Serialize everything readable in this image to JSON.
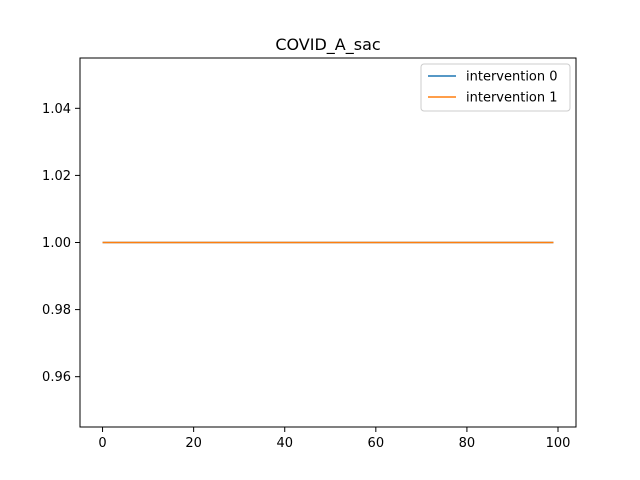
{
  "chart_data": {
    "type": "line",
    "title": "COVID_A_sac",
    "xlabel": "",
    "ylabel": "",
    "xlim": [
      -4.95,
      103.95
    ],
    "ylim": [
      0.945,
      1.055
    ],
    "xticks": [
      0,
      20,
      40,
      60,
      80,
      100
    ],
    "xtick_labels": [
      "0",
      "20",
      "40",
      "60",
      "80",
      "100"
    ],
    "yticks": [
      0.96,
      0.98,
      1.0,
      1.02,
      1.04
    ],
    "ytick_labels": [
      "0.96",
      "0.98",
      "1.00",
      "1.02",
      "1.04"
    ],
    "grid": false,
    "legend_position": "top-right",
    "x": [
      0,
      99
    ],
    "series": [
      {
        "name": "intervention 0",
        "color": "#1f77b4",
        "values": [
          1.0,
          1.0
        ]
      },
      {
        "name": "intervention 1",
        "color": "#ff7f0e",
        "values": [
          1.0,
          1.0
        ]
      }
    ]
  }
}
